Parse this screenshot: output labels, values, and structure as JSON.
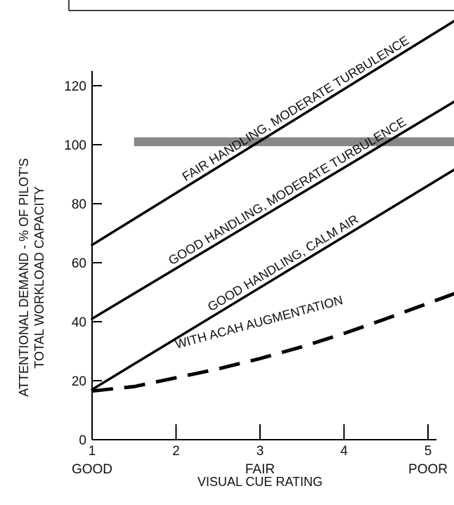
{
  "chart_data": {
    "type": "line",
    "xlabel": "VISUAL CUE RATING",
    "ylabel_lines": [
      "ATTENTIONAL DEMAND - % OF PILOT'S",
      "TOTAL WORKLOAD CAPACITY"
    ],
    "xlim": [
      1,
      5.1
    ],
    "ylim": [
      0,
      125
    ],
    "x_ticks": [
      1,
      2,
      3,
      4,
      5
    ],
    "x_tick_labels": [
      "1",
      "2",
      "3",
      "4",
      "5"
    ],
    "x_qualitative_labels": [
      {
        "x": 1,
        "label": "GOOD"
      },
      {
        "x": 3,
        "label": "FAIR"
      },
      {
        "x": 5,
        "label": "POOR"
      }
    ],
    "y_ticks": [
      0,
      20,
      40,
      60,
      80,
      100,
      120
    ],
    "y_tick_labels": [
      "0",
      "20",
      "40",
      "60",
      "80",
      "100",
      "120"
    ],
    "grid": false,
    "legend": "none (series labelled inline)",
    "capacity_band": {
      "y_from": 99.5,
      "y_to": 102.5,
      "x_from": 1.5,
      "x_to": 5.6,
      "color": "#7a7a7a"
    },
    "series": [
      {
        "name": "FAIR HANDLING, MODERATE TURBULENCE",
        "style": "solid",
        "x": [
          1,
          5.6
        ],
        "y": [
          66,
          147
        ],
        "color": "#000000"
      },
      {
        "name": "GOOD HANDLING, MODERATE TURBULENCE",
        "style": "solid",
        "x": [
          1,
          5.6
        ],
        "y": [
          41,
          119.5
        ],
        "color": "#000000"
      },
      {
        "name": "GOOD HANDLING, CALM AIR",
        "style": "solid",
        "x": [
          1,
          5.6
        ],
        "y": [
          17,
          96.5
        ],
        "color": "#000000"
      },
      {
        "name": "WITH ACAH AUGMENTATION",
        "style": "dashed",
        "x": [
          1,
          1.5,
          2,
          2.5,
          3,
          3.5,
          4,
          4.5,
          5.6
        ],
        "y": [
          16.5,
          18,
          21,
          24,
          27.5,
          31.5,
          36,
          41,
          52.5
        ],
        "color": "#000000"
      }
    ]
  }
}
